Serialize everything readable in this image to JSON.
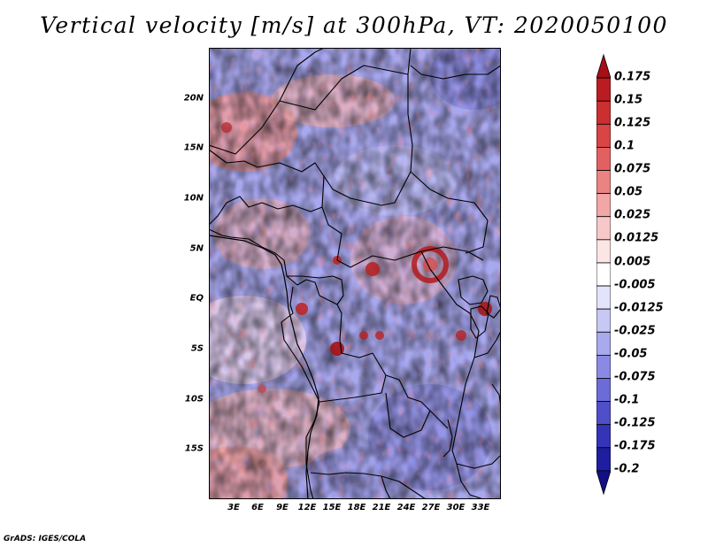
{
  "title": "Vertical velocity [m/s] at 300hPa, VT: 2020050100",
  "variable": "Vertical velocity",
  "units": "m/s",
  "level": "300hPa",
  "valid_time": "2020050100",
  "lat_labels": [
    "20N",
    "15N",
    "10N",
    "5N",
    "EQ",
    "5S",
    "10S",
    "15S"
  ],
  "lon_labels": [
    "3E",
    "6E",
    "9E",
    "12E",
    "15E",
    "18E",
    "21E",
    "24E",
    "27E",
    "30E",
    "33E"
  ],
  "colorbar": {
    "labels": [
      "0.175",
      "0.15",
      "0.125",
      "0.1",
      "0.075",
      "0.05",
      "0.025",
      "0.0125",
      "0.005",
      "-0.005",
      "-0.0125",
      "-0.025",
      "-0.05",
      "-0.075",
      "-0.1",
      "-0.125",
      "-0.175",
      "-0.2"
    ],
    "colors": [
      "#a50f15",
      "#bb1c22",
      "#cc2f30",
      "#d94444",
      "#e36060",
      "#ec8383",
      "#f3a6a6",
      "#f8c8c8",
      "#fce5e5",
      "#ffffff",
      "#e3e3fb",
      "#c8c8f5",
      "#a9a9ee",
      "#8a8ae4",
      "#6c6cd8",
      "#4f4fca",
      "#3434b8",
      "#1e1ea0",
      "#120f85"
    ]
  },
  "credit": "GrADS: IGES/COLA"
}
